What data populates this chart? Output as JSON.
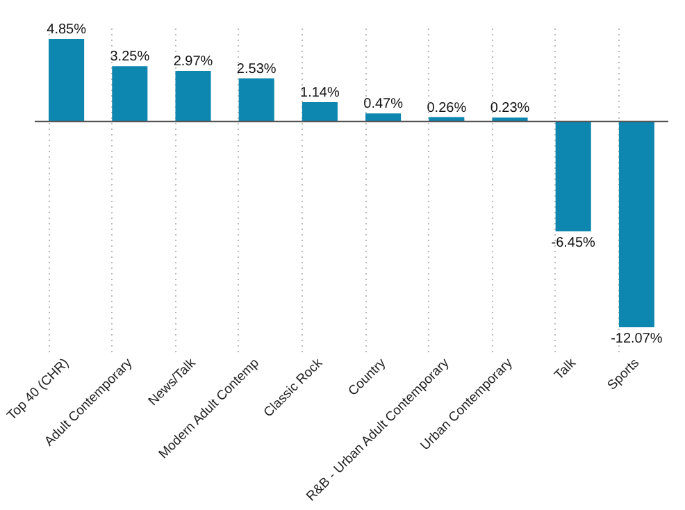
{
  "chart_data": {
    "type": "bar",
    "categories": [
      "Top 40 (CHR)",
      "Adult Contemporary",
      "News/Talk",
      "Modern Adult Contemp",
      "Classic Rock",
      "Country",
      "R&B - Urban Adult Contemporary",
      "Urban Contemporary",
      "Talk",
      "Sports"
    ],
    "values": [
      4.85,
      3.25,
      2.97,
      2.53,
      1.14,
      0.47,
      0.26,
      0.23,
      -6.45,
      -12.07
    ],
    "value_labels": [
      "4.85%",
      "3.25%",
      "2.97%",
      "2.53%",
      "1.14%",
      "0.47%",
      "0.26%",
      "0.23%",
      "-6.45%",
      "-12.07%"
    ],
    "color": "#0d87b0",
    "ylim": [
      -13.5,
      5.5
    ],
    "tick_labels": "x",
    "grid": "x",
    "ref_lines": [
      {
        "axis": "y",
        "value": 0,
        "color": "#555555"
      }
    ]
  }
}
